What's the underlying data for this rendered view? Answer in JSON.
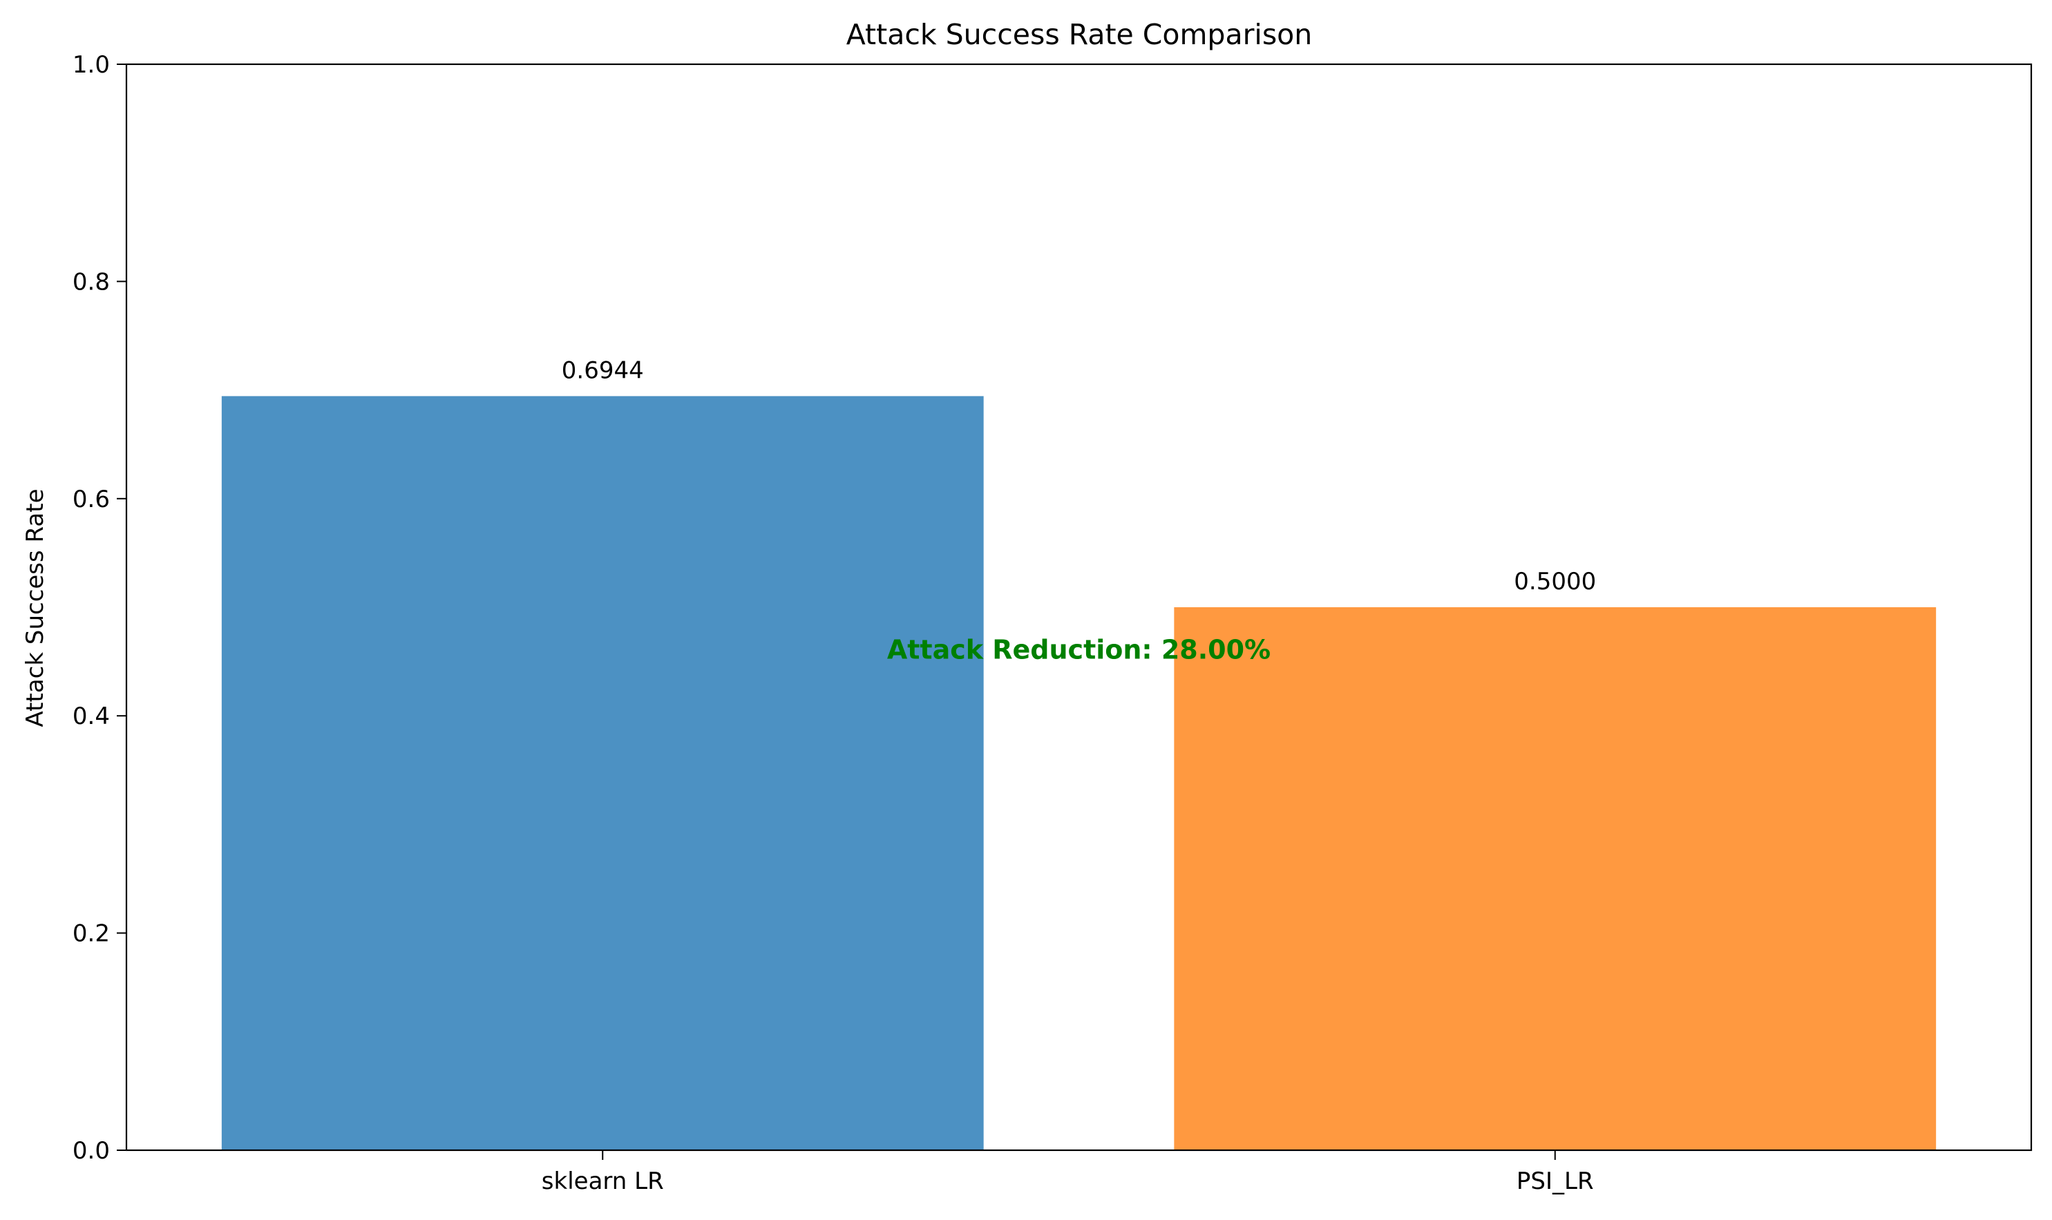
{
  "chart_data": {
    "type": "bar",
    "title": "Attack Success Rate Comparison",
    "xlabel": "",
    "ylabel": "Attack Success Rate",
    "categories": [
      "sklearn LR",
      "PSI_LR"
    ],
    "values": [
      0.6944,
      0.5
    ],
    "value_labels": [
      "0.6944",
      "0.5000"
    ],
    "colors": [
      "#4c91c3",
      "#ff9940"
    ],
    "ylim": [
      0,
      1.0
    ],
    "yticks": [
      0.0,
      0.2,
      0.4,
      0.6,
      0.8,
      1.0
    ],
    "ytick_labels": [
      "0.0",
      "0.2",
      "0.4",
      "0.6",
      "0.8",
      "1.0"
    ],
    "grid": false,
    "annotation": {
      "text": "Attack Reduction: 28.00%",
      "y": 0.45,
      "color": "#008000"
    }
  }
}
